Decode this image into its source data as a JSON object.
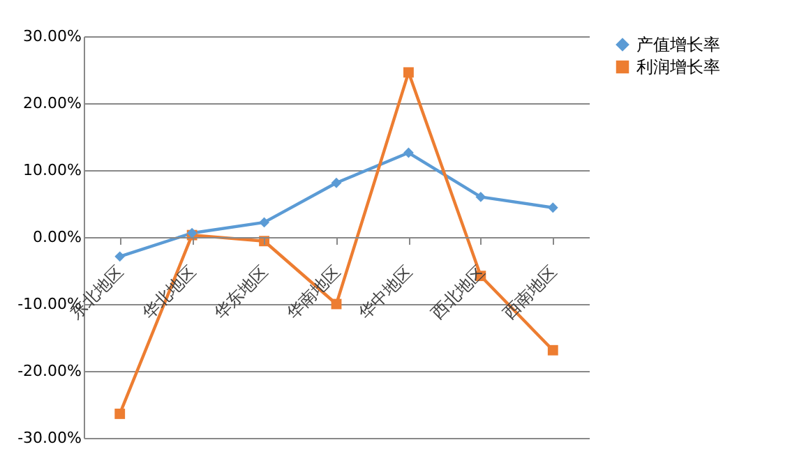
{
  "chart_data": {
    "type": "line",
    "categories": [
      "东北地区",
      "华北地区",
      "华东地区",
      "华南地区",
      "华中地区",
      "西北地区",
      "西南地区"
    ],
    "series": [
      {
        "name": "产值增长率",
        "color": "#5b9bd5",
        "marker": "diamond",
        "values": [
          -2.9,
          0.6,
          2.2,
          8.1,
          12.6,
          6.0,
          4.4
        ]
      },
      {
        "name": "利润增长率",
        "color": "#ed7d31",
        "marker": "square",
        "values": [
          -26.4,
          0.3,
          -0.6,
          -10.0,
          24.6,
          -5.8,
          -16.9
        ]
      }
    ],
    "ylim": [
      -30,
      30
    ],
    "yticks": [
      {
        "value": -30,
        "label": "-30.00%"
      },
      {
        "value": -20,
        "label": "-20.00%"
      },
      {
        "value": -10,
        "label": "-10.00%"
      },
      {
        "value": 0,
        "label": "0.00%"
      },
      {
        "value": 10,
        "label": "10.00%"
      },
      {
        "value": 20,
        "label": "20.00%"
      },
      {
        "value": 30,
        "label": "30.00%"
      }
    ],
    "grid": "y",
    "legend": "right"
  }
}
